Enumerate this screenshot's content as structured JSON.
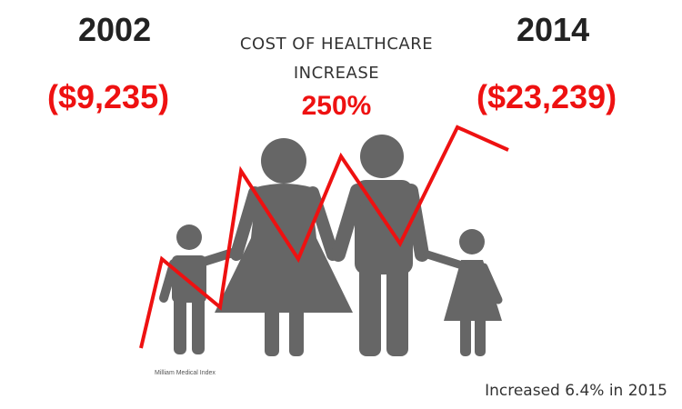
{
  "year_start": "2002",
  "year_end": "2014",
  "cost_start": "($9,235)",
  "cost_end": "($23,239)",
  "title_line1": "COST OF HEALTHCARE",
  "title_line2": "INCREASE",
  "increase_percent": "250%",
  "source": "Milliam Medical Index",
  "footnote": "Increased 6.4% in 2015",
  "colors": {
    "accent": "#ee1111",
    "figures": "#666666"
  },
  "icons": [
    "family-silhouette-icon",
    "trend-line-icon"
  ]
}
